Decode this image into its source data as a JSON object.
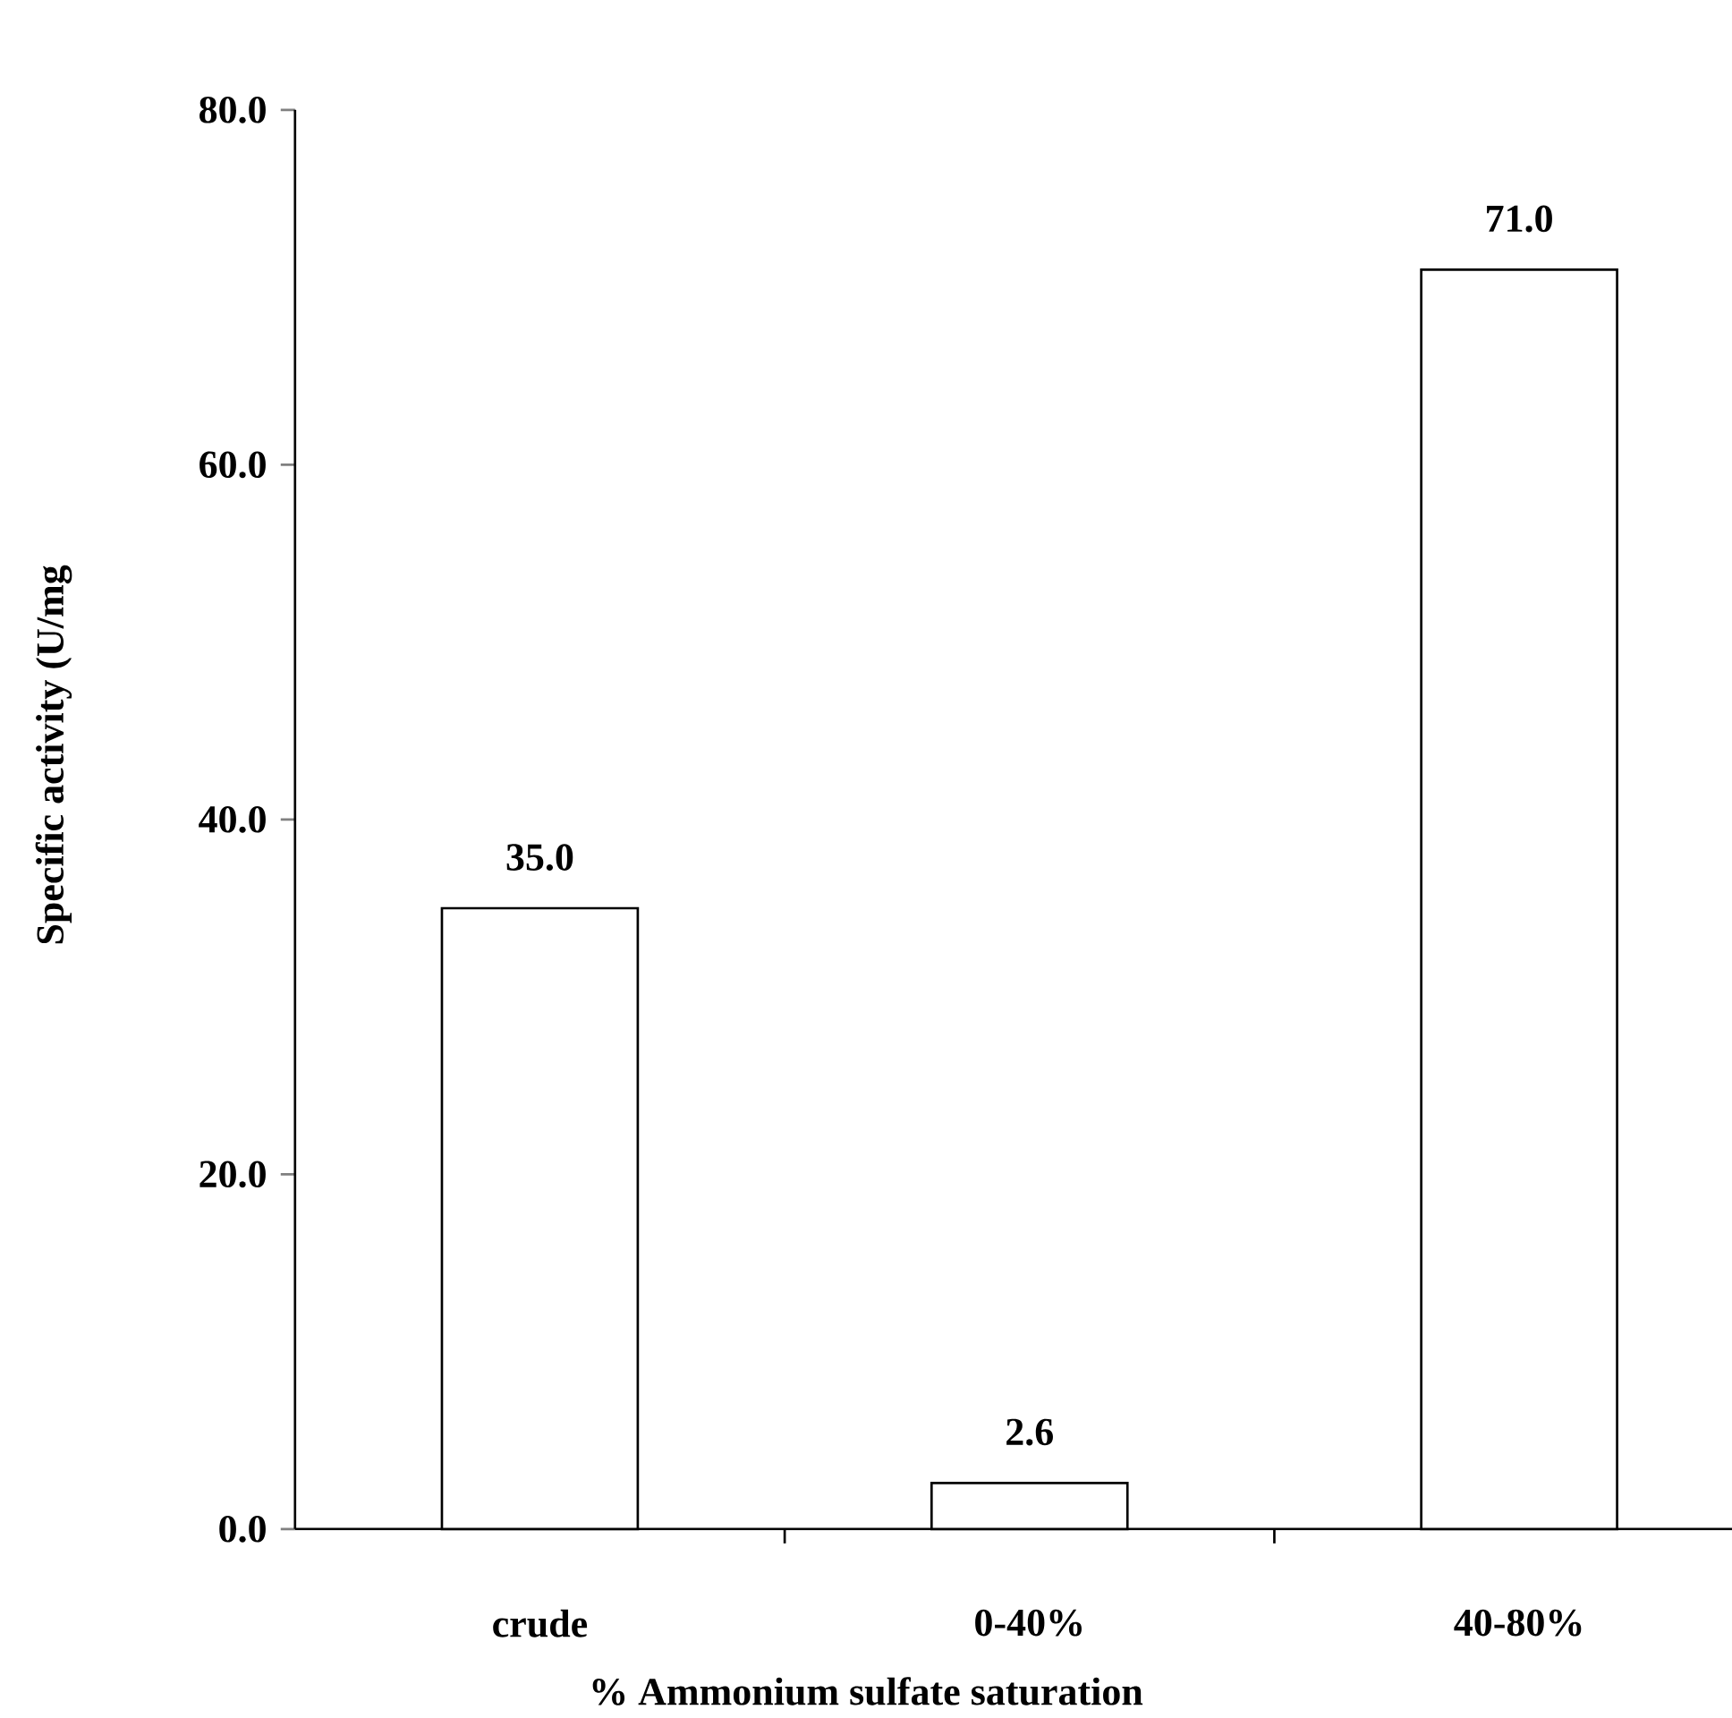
{
  "chart_data": {
    "type": "bar",
    "xlabel": "% Ammonium sulfate saturation",
    "ylabel": "Specific activity (U/mg",
    "categories": [
      "crude",
      "0-40%",
      "40-80%"
    ],
    "values": [
      35.0,
      2.6,
      71.0
    ],
    "value_labels": [
      "35.0",
      "2.6",
      "71.0"
    ],
    "color": "#ffffff",
    "ylim": [
      0,
      80
    ],
    "yticks": [
      {
        "value": 0,
        "label": "0.0"
      },
      {
        "value": 20,
        "label": "20.0"
      },
      {
        "value": 40,
        "label": "40.0"
      },
      {
        "value": 60,
        "label": "60.0"
      },
      {
        "value": 80,
        "label": "80.0"
      }
    ]
  }
}
